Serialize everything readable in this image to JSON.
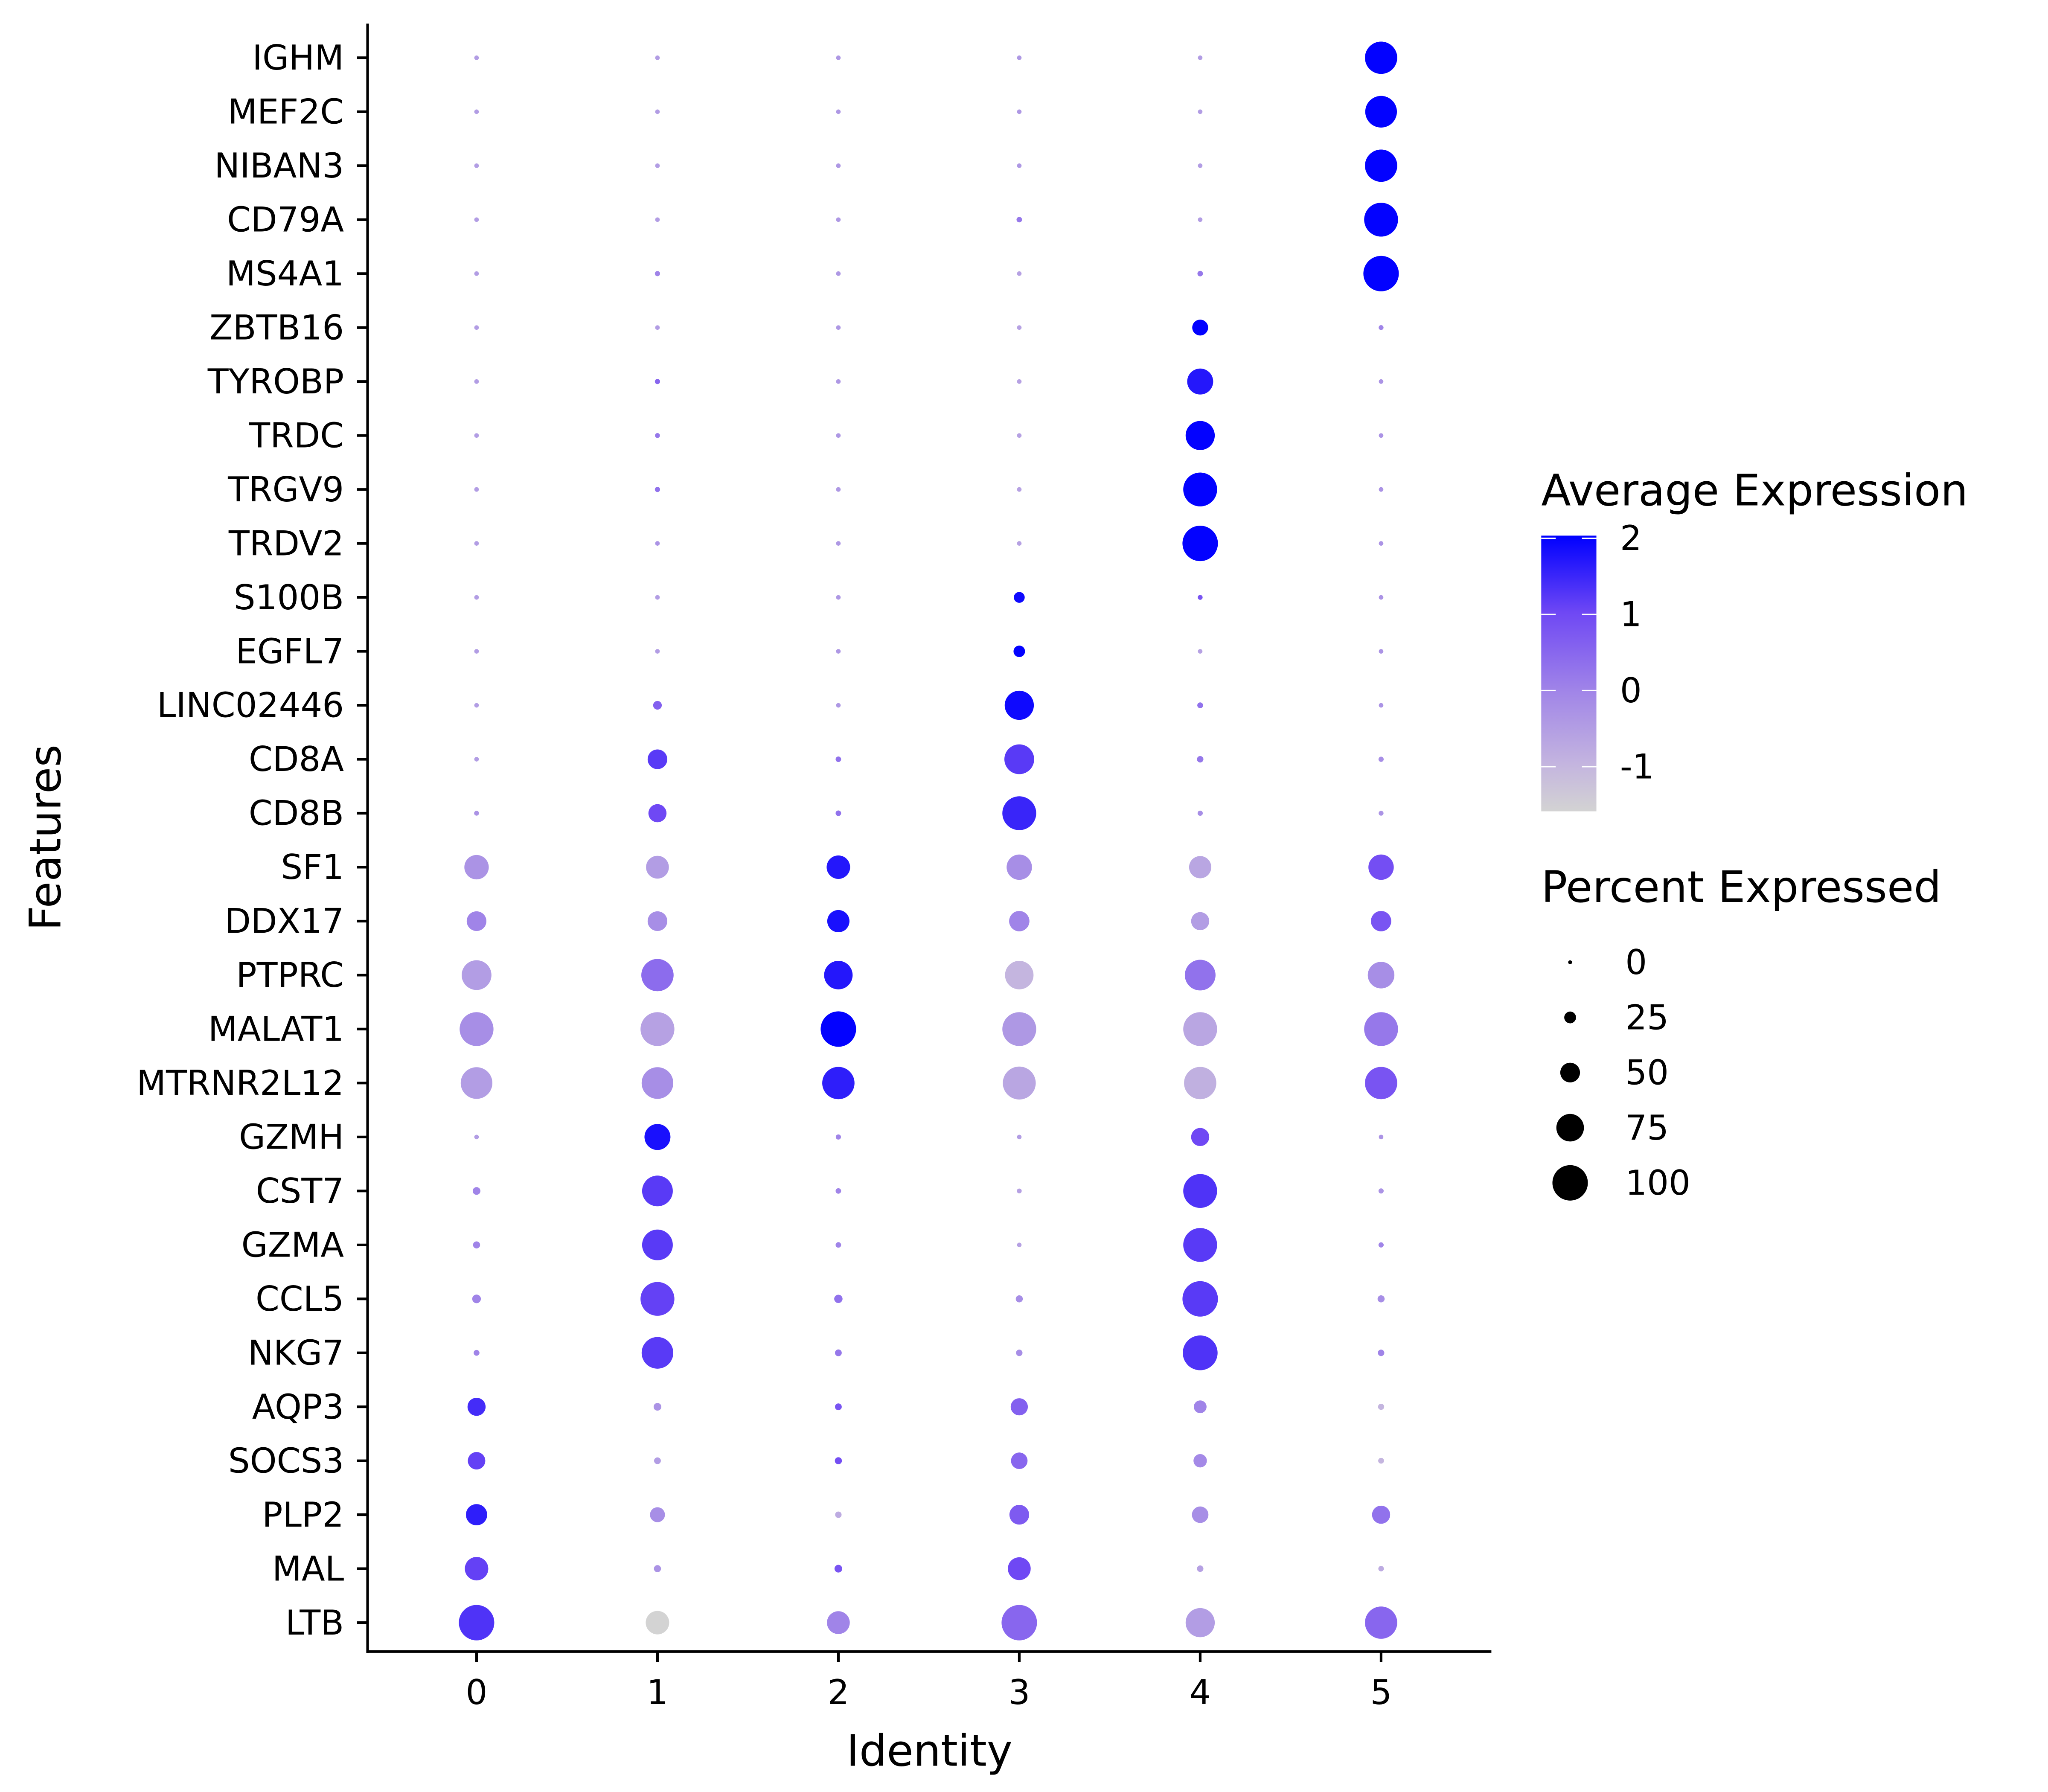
{
  "chart_data": {
    "type": "dotplot",
    "xlabel": "Identity",
    "ylabel": "Features",
    "categories": [
      "0",
      "1",
      "2",
      "3",
      "4",
      "5"
    ],
    "features": [
      "IGHM",
      "MEF2C",
      "NIBAN3",
      "CD79A",
      "MS4A1",
      "ZBTB16",
      "TYROBP",
      "TRDC",
      "TRGV9",
      "TRDV2",
      "S100B",
      "EGFL7",
      "LINC02446",
      "CD8A",
      "CD8B",
      "SF1",
      "DDX17",
      "PTPRC",
      "MALAT1",
      "MTRNR2L12",
      "GZMH",
      "CST7",
      "GZMA",
      "CCL5",
      "NKG7",
      "AQP3",
      "SOCS3",
      "PLP2",
      "MAL",
      "LTB"
    ],
    "percent_expressed": [
      [
        2,
        2,
        2,
        2,
        2,
        90
      ],
      [
        2,
        2,
        2,
        2,
        2,
        88
      ],
      [
        2,
        2,
        2,
        2,
        2,
        90
      ],
      [
        2,
        2,
        2,
        5,
        2,
        95
      ],
      [
        2,
        4,
        2,
        2,
        5,
        100
      ],
      [
        2,
        2,
        2,
        2,
        38,
        3
      ],
      [
        2,
        4,
        2,
        2,
        70,
        2
      ],
      [
        2,
        3,
        2,
        2,
        80,
        2
      ],
      [
        2,
        4,
        2,
        2,
        95,
        2
      ],
      [
        2,
        2,
        2,
        2,
        100,
        2
      ],
      [
        2,
        2,
        2,
        22,
        3,
        2
      ],
      [
        2,
        2,
        2,
        24,
        2,
        2
      ],
      [
        2,
        15,
        2,
        80,
        6,
        2
      ],
      [
        2,
        50,
        5,
        82,
        8,
        4
      ],
      [
        3,
        45,
        5,
        95,
        4,
        3
      ],
      [
        65,
        60,
        62,
        68,
        58,
        68
      ],
      [
        50,
        50,
        58,
        52,
        45,
        52
      ],
      [
        82,
        90,
        78,
        78,
        85,
        72
      ],
      [
        95,
        95,
        100,
        95,
        95,
        95
      ],
      [
        88,
        88,
        90,
        92,
        90,
        90
      ],
      [
        2,
        70,
        4,
        2,
        45,
        2
      ],
      [
        12,
        85,
        5,
        3,
        95,
        4
      ],
      [
        10,
        85,
        5,
        2,
        95,
        4
      ],
      [
        15,
        95,
        14,
        10,
        100,
        10
      ],
      [
        6,
        88,
        9,
        8,
        98,
        8
      ],
      [
        45,
        12,
        9,
        42,
        28,
        7
      ],
      [
        43,
        9,
        10,
        40,
        30,
        6
      ],
      [
        55,
        35,
        8,
        50,
        40,
        45
      ],
      [
        62,
        10,
        12,
        60,
        8,
        5
      ],
      [
        100,
        62,
        60,
        100,
        80,
        90
      ]
    ],
    "average_expression": [
      [
        -0.5,
        -0.5,
        -0.4,
        -0.4,
        -0.5,
        2
      ],
      [
        -0.5,
        -0.5,
        -0.4,
        -0.4,
        -0.5,
        2
      ],
      [
        -0.5,
        -0.5,
        -0.4,
        -0.4,
        -0.5,
        2
      ],
      [
        -0.5,
        -0.5,
        -0.4,
        0.2,
        -0.5,
        2
      ],
      [
        -0.5,
        0,
        -0.4,
        -0.6,
        0.2,
        2
      ],
      [
        -0.5,
        -0.5,
        -0.4,
        -0.6,
        2,
        0
      ],
      [
        -0.5,
        0.5,
        -0.4,
        -0.6,
        1.7,
        -0.3
      ],
      [
        -0.5,
        0.2,
        -0.4,
        -0.6,
        2,
        -0.3
      ],
      [
        -0.5,
        0.3,
        -0.4,
        -0.6,
        2,
        -0.3
      ],
      [
        -0.5,
        -0.3,
        -0.4,
        -0.6,
        2,
        -0.3
      ],
      [
        -0.5,
        -0.5,
        -0.4,
        1.9,
        0.8,
        -0.3
      ],
      [
        -0.5,
        -0.5,
        -0.4,
        2,
        -0.6,
        -0.3
      ],
      [
        -0.5,
        0.6,
        -0.4,
        1.9,
        0.3,
        -0.3
      ],
      [
        -0.5,
        1.2,
        0.3,
        1.2,
        0.2,
        -0.2
      ],
      [
        -0.3,
        1.0,
        0.3,
        1.5,
        -0.2,
        -0.3
      ],
      [
        -0.3,
        -0.5,
        1.7,
        -0.2,
        -0.7,
        0.9
      ],
      [
        0,
        -0.2,
        1.8,
        0,
        -0.5,
        0.8
      ],
      [
        -0.5,
        0.4,
        1.7,
        -1.0,
        0.3,
        -0.2
      ],
      [
        -0.2,
        -0.6,
        2,
        -0.4,
        -0.7,
        0.2
      ],
      [
        -0.5,
        -0.2,
        1.6,
        -0.7,
        -0.9,
        0.8
      ],
      [
        -0.5,
        1.8,
        0,
        -0.5,
        1.0,
        -0.3
      ],
      [
        0,
        1.2,
        0,
        -0.6,
        1.3,
        -0.3
      ],
      [
        0,
        1.2,
        0,
        -0.6,
        1.2,
        0
      ],
      [
        0,
        1.1,
        0.3,
        -0.2,
        1.2,
        -0.2
      ],
      [
        0,
        1.2,
        0.2,
        -0.2,
        1.3,
        0
      ],
      [
        1.4,
        -0.3,
        0.8,
        0.6,
        0,
        -1.0
      ],
      [
        1.1,
        -0.5,
        0.9,
        0.5,
        -0.1,
        -1.0
      ],
      [
        1.6,
        -0.2,
        -0.8,
        0.7,
        -0.2,
        0.3
      ],
      [
        1.1,
        -0.3,
        0.8,
        1.0,
        -0.6,
        -0.8
      ],
      [
        1.3,
        -1.6,
        0,
        0.5,
        -0.5,
        0.5
      ]
    ],
    "color_legend": {
      "title": "Average Expression",
      "ticks": [
        "2",
        "1",
        "0",
        "-1"
      ],
      "range": [
        -1.6,
        2.03
      ],
      "low_color": "#d3d3d3",
      "high_color": "#0000ff"
    },
    "size_legend": {
      "title": "Percent Expressed",
      "ticks": [
        "0",
        "25",
        "50",
        "75",
        "100"
      ]
    }
  }
}
